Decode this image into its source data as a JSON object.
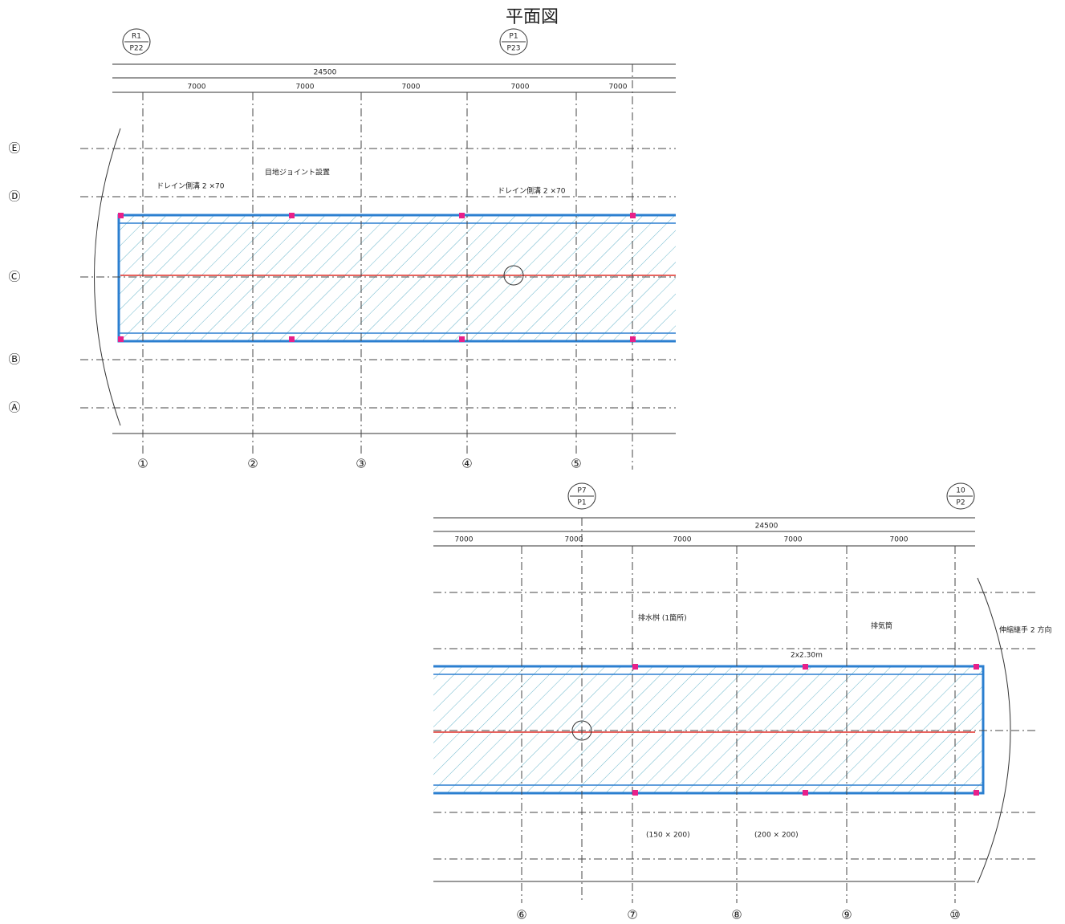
{
  "title": "平面図",
  "upper_plan": {
    "axis_markers": [
      {
        "top": "R1",
        "bottom": "P22"
      },
      {
        "top": "P1",
        "bottom": "P23"
      }
    ],
    "overall_dimension": "24500",
    "span_dimensions": [
      "7000",
      "7000",
      "7000",
      "7000",
      "7000"
    ],
    "column_labels": [
      "①",
      "②",
      "③",
      "④",
      "⑤"
    ],
    "row_labels": [
      "Ⓔ",
      "Ⓓ",
      "Ⓒ",
      "Ⓑ",
      "Ⓐ"
    ],
    "notes": [
      "ドレイン側溝 2 ×70",
      "目地ジョイント設置",
      "ドレイン側溝 2 ×70"
    ]
  },
  "lower_plan": {
    "axis_markers": [
      {
        "top": "P7",
        "bottom": "P1"
      },
      {
        "top": "10",
        "bottom": "P2"
      }
    ],
    "overall_dimension": "24500",
    "span_dimensions": [
      "7000",
      "7000",
      "7000",
      "7000",
      "7000"
    ],
    "column_labels": [
      "⑥",
      "⑦",
      "⑧",
      "⑨",
      "⑩"
    ],
    "notes": [
      "排水桝 (1箇所)",
      "2x2.30m",
      "排気筒",
      "伸縮継手 2 方向",
      "(150 × 200)",
      "(200 × 200)"
    ]
  }
}
